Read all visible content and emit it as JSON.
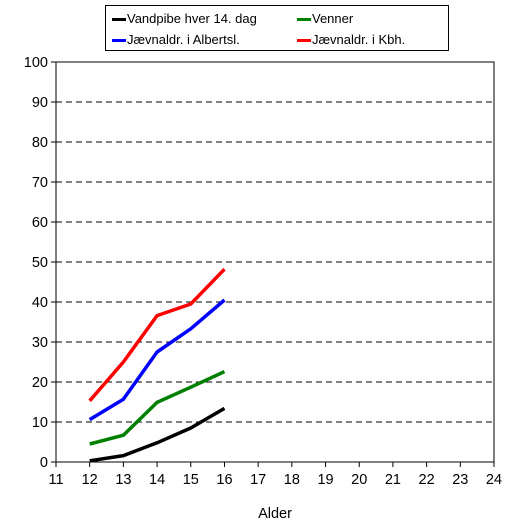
{
  "chart_data": {
    "type": "line",
    "title": "",
    "xlabel": "Alder",
    "ylabel": "",
    "xlim": [
      11,
      24
    ],
    "ylim": [
      0,
      100
    ],
    "x_ticks": [
      "11",
      "12",
      "13",
      "14",
      "15",
      "16",
      "17",
      "18",
      "19",
      "20",
      "21",
      "22",
      "23",
      "24"
    ],
    "y_ticks": [
      "0",
      "10",
      "20",
      "30",
      "40",
      "50",
      "60",
      "70",
      "80",
      "90",
      "100"
    ],
    "grid": "horizontal dashed",
    "legend_position": "top",
    "x": [
      12,
      13,
      14,
      15,
      16
    ],
    "series": [
      {
        "name": "Vandpibe hver 14. dag",
        "color": "#000000",
        "values": [
          0.3,
          1.6,
          4.8,
          8.5,
          13.4
        ]
      },
      {
        "name": "Venner",
        "color": "#008000",
        "values": [
          4.5,
          6.7,
          14.9,
          18.7,
          22.6
        ]
      },
      {
        "name": "Jævnaldr. i Albertsl.",
        "color": "#0000ff",
        "values": [
          10.6,
          15.7,
          27.5,
          33.3,
          40.5
        ]
      },
      {
        "name": "Jævnaldr. i Kbh.",
        "color": "#ff0000",
        "values": [
          15.3,
          25.0,
          36.6,
          39.5,
          48.2
        ]
      }
    ]
  }
}
